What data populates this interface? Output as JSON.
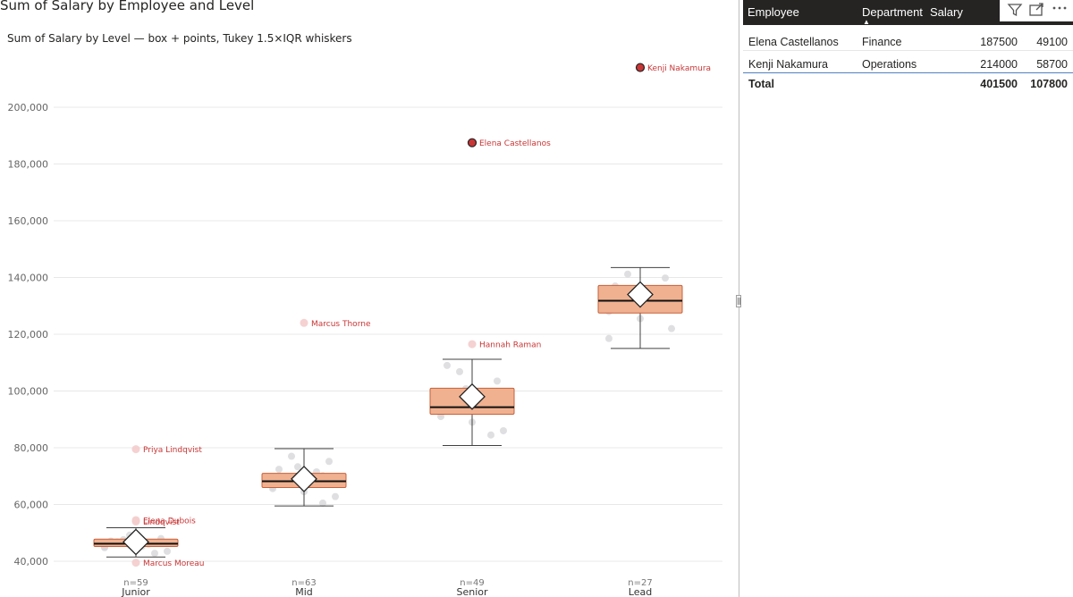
{
  "visual_title": "Sum of Salary by Employee and Level",
  "chart_data": {
    "type": "box",
    "title": "Sum of Salary by Level — box + points, Tukey 1.5×IQR whiskers",
    "ylim": [
      38000,
      218000
    ],
    "yticks": [
      40000,
      60000,
      80000,
      100000,
      120000,
      140000,
      160000,
      180000,
      200000
    ],
    "ytick_labels": [
      "40,000",
      "60,000",
      "80,000",
      "100,000",
      "120,000",
      "140,000",
      "160,000",
      "180,000",
      "200,000"
    ],
    "grid": true,
    "box_color": "#f0b190",
    "point_color": "#d9d9dd",
    "outlier_color": "#c93636",
    "categories": [
      "Junior",
      "Mid",
      "Senior",
      "Lead"
    ],
    "counts": [
      "n=59",
      "n=63",
      "n=49",
      "n=27"
    ],
    "groups": [
      {
        "level": "Junior",
        "whisker_low": 41500,
        "q1": 45200,
        "median": 46200,
        "q3": 47800,
        "whisker_high": 51800,
        "mean": 46800,
        "points": [
          45000,
          45600,
          46300,
          47100,
          44200,
          48000,
          46800,
          45300,
          43500,
          47600,
          46000,
          44800,
          49200,
          42800,
          46600
        ],
        "outliers": [
          {
            "name": "Priya Lindqvist",
            "value": 79500,
            "highlight": false
          },
          {
            "name": "Elena Dubois",
            "value": 54500,
            "highlight": false
          },
          {
            "name": "Lindqvist",
            "value": 54000,
            "highlight": false
          },
          {
            "name": "Marcus Moreau",
            "value": 39500,
            "highlight": false
          }
        ]
      },
      {
        "level": "Mid",
        "whisker_low": 59500,
        "q1": 66000,
        "median": 68200,
        "q3": 71000,
        "whisker_high": 79700,
        "mean": 69000,
        "points": [
          66200,
          68000,
          70100,
          72400,
          64500,
          75200,
          67100,
          69500,
          62800,
          77000,
          71500,
          65600,
          73300,
          60500,
          68800
        ],
        "outliers": [
          {
            "name": "Marcus Thorne",
            "value": 124000,
            "highlight": false
          }
        ]
      },
      {
        "level": "Senior",
        "whisker_low": 80800,
        "q1": 91800,
        "median": 94300,
        "q3": 101000,
        "whisker_high": 111200,
        "mean": 98000,
        "points": [
          92000,
          94500,
          96800,
          99500,
          89000,
          103500,
          93300,
          97200,
          86000,
          106800,
          95500,
          91000,
          100800,
          84500,
          109000
        ],
        "outliers": [
          {
            "name": "Hannah Raman",
            "value": 116500,
            "highlight": false
          },
          {
            "name": "Elena Castellanos",
            "value": 187500,
            "highlight": true
          }
        ]
      },
      {
        "level": "Lead",
        "whisker_low": 115000,
        "q1": 127500,
        "median": 131800,
        "q3": 137200,
        "whisker_high": 143500,
        "mean": 134000,
        "points": [
          128000,
          131500,
          134200,
          137000,
          125500,
          139800,
          130400,
          133300,
          122000,
          141200,
          129600,
          118500
        ],
        "outliers": [
          {
            "name": "Kenji Nakamura",
            "value": 214000,
            "highlight": true
          }
        ]
      }
    ]
  },
  "table": {
    "columns": [
      "Employee",
      "Department",
      "Salary"
    ],
    "sorted_column": "Department",
    "icons": [
      "filter-icon",
      "focus-mode-icon",
      "more-options-icon"
    ],
    "rows": [
      {
        "employee": "Elena Castellanos",
        "department": "Finance",
        "salary": "187500",
        "extra": "49100"
      },
      {
        "employee": "Kenji Nakamura",
        "department": "Operations",
        "salary": "214000",
        "extra": "58700"
      }
    ],
    "total": {
      "label": "Total",
      "salary": "401500",
      "extra": "107800"
    }
  }
}
